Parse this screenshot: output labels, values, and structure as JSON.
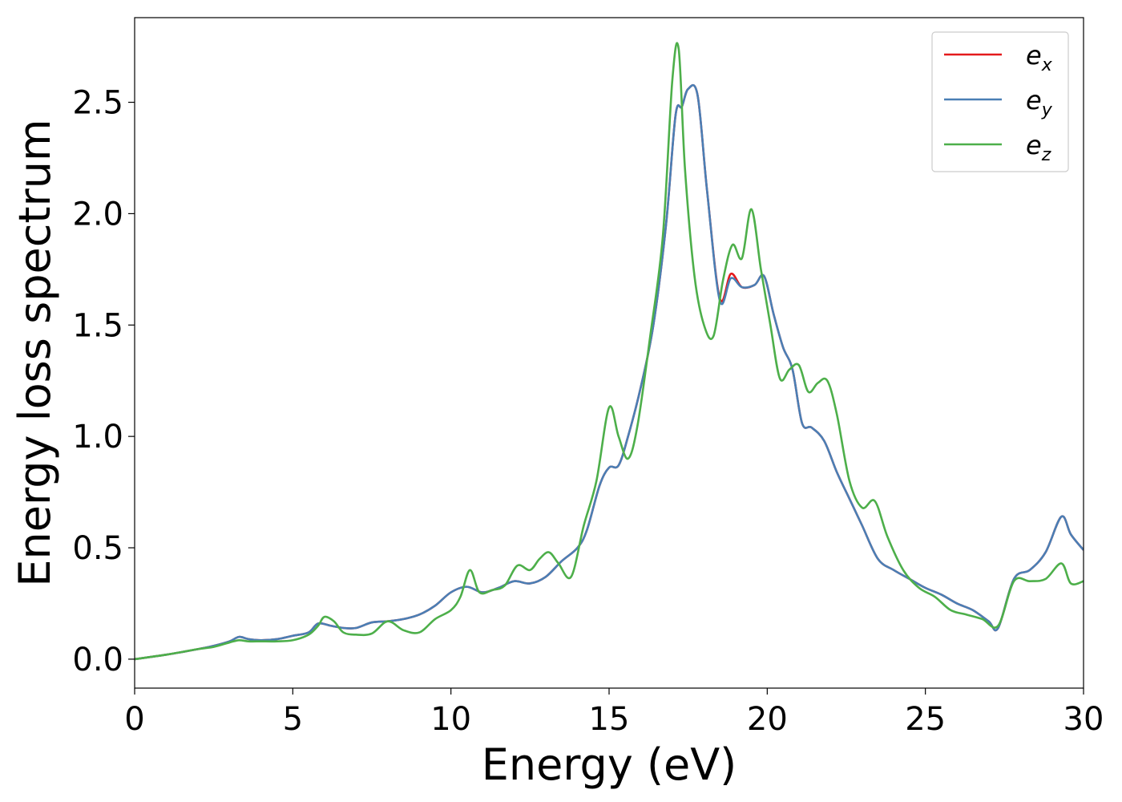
{
  "chart_data": {
    "type": "line",
    "title": "",
    "xlabel": "Energy (eV)",
    "ylabel": "Energy loss spectrum",
    "xlim": [
      0,
      30
    ],
    "ylim": [
      -0.13,
      2.88
    ],
    "xticks": [
      "0",
      "5",
      "10",
      "15",
      "20",
      "25",
      "30"
    ],
    "yticks": [
      "0.0",
      "0.5",
      "1.0",
      "1.5",
      "2.0",
      "2.5"
    ],
    "xtick_values": [
      0,
      5,
      10,
      15,
      20,
      25,
      30
    ],
    "ytick_values": [
      0.0,
      0.5,
      1.0,
      1.5,
      2.0,
      2.5
    ],
    "grid": false,
    "legend_position": "top-right",
    "series": [
      {
        "name": "e_x",
        "label_base": "e",
        "label_sub": "x",
        "color": "#e41a1c",
        "x": [
          0,
          1,
          2,
          2.5,
          3,
          3.3,
          3.6,
          4,
          4.5,
          5,
          5.5,
          5.8,
          6.2,
          6.6,
          7,
          7.5,
          8,
          8.5,
          9,
          9.5,
          10,
          10.5,
          11,
          11.5,
          12,
          12.5,
          13,
          13.5,
          14,
          14.3,
          14.7,
          15,
          15.3,
          15.6,
          16,
          16.4,
          16.8,
          17.1,
          17.3,
          17.5,
          17.8,
          18.1,
          18.5,
          18.85,
          19.2,
          19.6,
          19.9,
          20.2,
          20.5,
          20.8,
          21.1,
          21.4,
          21.8,
          22.2,
          22.6,
          23,
          23.5,
          24,
          24.5,
          25,
          25.5,
          26,
          26.5,
          27,
          27.3,
          27.8,
          28.3,
          28.8,
          29.3,
          29.6,
          30
        ],
        "values": [
          0,
          0.02,
          0.045,
          0.06,
          0.08,
          0.1,
          0.09,
          0.085,
          0.09,
          0.105,
          0.12,
          0.16,
          0.15,
          0.14,
          0.14,
          0.165,
          0.17,
          0.18,
          0.2,
          0.24,
          0.3,
          0.325,
          0.3,
          0.32,
          0.35,
          0.34,
          0.37,
          0.44,
          0.5,
          0.58,
          0.78,
          0.86,
          0.87,
          1.0,
          1.22,
          1.5,
          1.95,
          2.44,
          2.48,
          2.56,
          2.53,
          2.1,
          1.62,
          1.73,
          1.67,
          1.68,
          1.72,
          1.55,
          1.4,
          1.3,
          1.06,
          1.04,
          0.98,
          0.84,
          0.72,
          0.6,
          0.45,
          0.4,
          0.36,
          0.32,
          0.29,
          0.25,
          0.22,
          0.17,
          0.14,
          0.36,
          0.4,
          0.48,
          0.64,
          0.56,
          0.49
        ]
      },
      {
        "name": "e_y",
        "label_base": "e",
        "label_sub": "y",
        "color": "#4a7fb5",
        "x": [
          0,
          1,
          2,
          2.5,
          3,
          3.3,
          3.6,
          4,
          4.5,
          5,
          5.5,
          5.8,
          6.2,
          6.6,
          7,
          7.5,
          8,
          8.5,
          9,
          9.5,
          10,
          10.5,
          11,
          11.5,
          12,
          12.5,
          13,
          13.5,
          14,
          14.3,
          14.7,
          15,
          15.3,
          15.6,
          16,
          16.4,
          16.8,
          17.1,
          17.3,
          17.5,
          17.8,
          18.1,
          18.5,
          18.85,
          19.2,
          19.6,
          19.9,
          20.2,
          20.5,
          20.8,
          21.1,
          21.4,
          21.8,
          22.2,
          22.6,
          23,
          23.5,
          24,
          24.5,
          25,
          25.5,
          26,
          26.5,
          27,
          27.3,
          27.8,
          28.3,
          28.8,
          29.3,
          29.6,
          30
        ],
        "values": [
          0,
          0.02,
          0.045,
          0.06,
          0.08,
          0.1,
          0.09,
          0.085,
          0.09,
          0.105,
          0.12,
          0.16,
          0.15,
          0.14,
          0.14,
          0.165,
          0.17,
          0.18,
          0.2,
          0.24,
          0.3,
          0.325,
          0.3,
          0.32,
          0.35,
          0.34,
          0.37,
          0.44,
          0.5,
          0.58,
          0.78,
          0.86,
          0.87,
          1.0,
          1.22,
          1.5,
          1.95,
          2.44,
          2.48,
          2.56,
          2.53,
          2.1,
          1.61,
          1.71,
          1.67,
          1.68,
          1.72,
          1.55,
          1.4,
          1.3,
          1.06,
          1.04,
          0.98,
          0.84,
          0.72,
          0.6,
          0.45,
          0.4,
          0.36,
          0.32,
          0.29,
          0.25,
          0.22,
          0.17,
          0.14,
          0.36,
          0.4,
          0.48,
          0.64,
          0.56,
          0.49
        ]
      },
      {
        "name": "e_z",
        "label_base": "e",
        "label_sub": "z",
        "color": "#4daf4a",
        "x": [
          0,
          1,
          2,
          2.5,
          3,
          3.3,
          3.6,
          4,
          4.5,
          5,
          5.5,
          5.8,
          6,
          6.3,
          6.6,
          7,
          7.5,
          8,
          8.5,
          9,
          9.5,
          10,
          10.3,
          10.6,
          10.9,
          11.3,
          11.7,
          12.1,
          12.5,
          12.8,
          13.1,
          13.4,
          13.8,
          14.2,
          14.6,
          15,
          15.3,
          15.6,
          15.9,
          16.3,
          16.7,
          17,
          17.2,
          17.4,
          17.7,
          18,
          18.3,
          18.6,
          18.9,
          19.2,
          19.5,
          19.8,
          20.1,
          20.4,
          20.7,
          21,
          21.3,
          21.6,
          21.9,
          22.2,
          22.6,
          23,
          23.4,
          23.8,
          24.3,
          24.8,
          25.3,
          25.8,
          26.3,
          26.8,
          27.3,
          27.8,
          28.3,
          28.8,
          29.3,
          29.6,
          30
        ],
        "values": [
          0,
          0.02,
          0.045,
          0.055,
          0.075,
          0.085,
          0.08,
          0.08,
          0.08,
          0.085,
          0.11,
          0.15,
          0.19,
          0.17,
          0.12,
          0.11,
          0.115,
          0.17,
          0.13,
          0.12,
          0.18,
          0.22,
          0.28,
          0.4,
          0.3,
          0.31,
          0.33,
          0.42,
          0.4,
          0.45,
          0.48,
          0.43,
          0.37,
          0.6,
          0.8,
          1.13,
          1.0,
          0.9,
          1.05,
          1.45,
          1.9,
          2.6,
          2.74,
          2.2,
          1.72,
          1.5,
          1.45,
          1.7,
          1.86,
          1.8,
          2.02,
          1.75,
          1.5,
          1.26,
          1.3,
          1.32,
          1.2,
          1.24,
          1.25,
          1.1,
          0.8,
          0.68,
          0.71,
          0.55,
          0.4,
          0.32,
          0.28,
          0.22,
          0.2,
          0.18,
          0.15,
          0.35,
          0.35,
          0.36,
          0.43,
          0.34,
          0.35
        ]
      }
    ]
  }
}
